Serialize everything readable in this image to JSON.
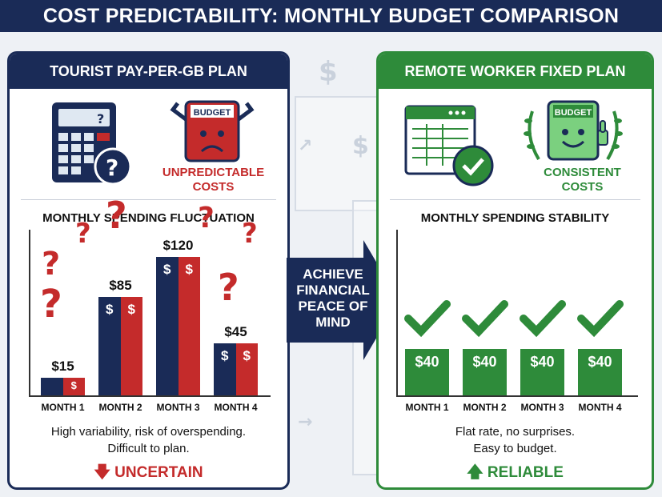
{
  "header": {
    "title": "COST PREDICTABILITY: MONTHLY BUDGET COMPARISON"
  },
  "center": {
    "arrow_text": "ACHIEVE FINANCIAL PEACE OF MIND"
  },
  "left_panel": {
    "title": "TOURIST PAY-PER-GB PLAN",
    "badge_label": "BUDGET",
    "caption": "UNPREDICTABLE COSTS",
    "chart_title": "MONTHLY SPENDING FLUCTUATION",
    "note_line1": "High variability, risk of overspending.",
    "note_line2": "Difficult to plan.",
    "status": "UNCERTAIN"
  },
  "right_panel": {
    "title": "REMOTE WORKER FIXED PLAN",
    "badge_label": "BUDGET",
    "caption": "CONSISTENT COSTS",
    "chart_title": "MONTHLY SPENDING STABILITY",
    "note_line1": "Flat rate, no surprises.",
    "note_line2": "Easy to budget.",
    "status": "RELIABLE"
  },
  "colors": {
    "navy": "#1a2b57",
    "red": "#c42b2b",
    "green": "#2e8b3a"
  },
  "chart_data": [
    {
      "type": "bar",
      "title": "MONTHLY SPENDING FLUCTUATION",
      "categories": [
        "MONTH 1",
        "MONTH 2",
        "MONTH 3",
        "MONTH 4"
      ],
      "values": [
        15,
        85,
        120,
        45
      ],
      "value_labels": [
        "$15",
        "$85",
        "$120",
        "$45"
      ],
      "bar_symbol": "$",
      "ylim": [
        0,
        140
      ]
    },
    {
      "type": "bar",
      "title": "MONTHLY SPENDING STABILITY",
      "categories": [
        "MONTH 1",
        "MONTH 2",
        "MONTH 3",
        "MONTH 4"
      ],
      "values": [
        40,
        40,
        40,
        40
      ],
      "value_labels": [
        "$40",
        "$40",
        "$40",
        "$40"
      ],
      "ylim": [
        0,
        140
      ]
    }
  ]
}
